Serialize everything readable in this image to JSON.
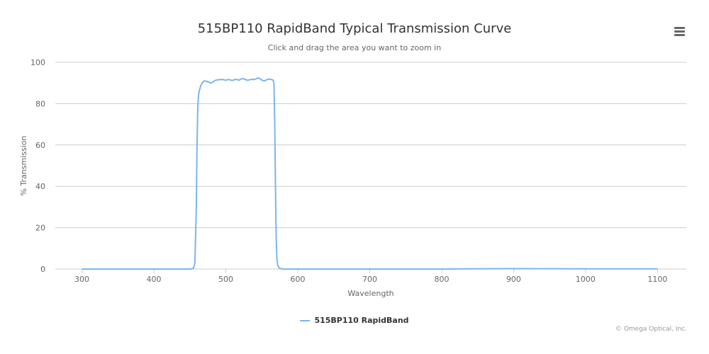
{
  "colors": {
    "series": "#7cb5ec",
    "grid": "#cccccc",
    "axis_text": "#666666",
    "title": "#333333"
  },
  "menu": {
    "icon": "hamburger-menu-icon"
  },
  "chart_data": {
    "type": "line",
    "title": "515BP110 RapidBand Typical Transmission Curve",
    "subtitle": "Click and drag the area you want to zoom in",
    "xlabel": "Wavelength",
    "ylabel": "% Transmission",
    "xlim": [
      263,
      1140
    ],
    "ylim": [
      0,
      100
    ],
    "x_ticks": [
      300,
      400,
      500,
      600,
      700,
      800,
      900,
      1000,
      1100
    ],
    "y_ticks": [
      0,
      20,
      40,
      60,
      80,
      100
    ],
    "grid": true,
    "legend_position": "bottom-center",
    "series": [
      {
        "name": "515BP110 RapidBand",
        "color": "#7cb5ec",
        "x": [
          300,
          400,
          450,
          455,
          457,
          459,
          460,
          461,
          462,
          463,
          465,
          467,
          470,
          473,
          476,
          479,
          482,
          485,
          488,
          491,
          494,
          497,
          500,
          503,
          506,
          509,
          512,
          515,
          518,
          521,
          524,
          527,
          530,
          533,
          536,
          539,
          542,
          545,
          548,
          551,
          554,
          557,
          560,
          563,
          566,
          567,
          568,
          569,
          570,
          571,
          572,
          574,
          576,
          580,
          600,
          700,
          800,
          900,
          1000,
          1100
        ],
        "y": [
          0,
          0,
          0,
          0.3,
          3,
          30,
          60,
          78,
          84,
          86,
          88.5,
          90,
          91,
          90.8,
          90.5,
          90,
          90.4,
          91.2,
          91.5,
          91.6,
          91.7,
          91.6,
          91.3,
          91.7,
          91.5,
          91.2,
          91.6,
          91.8,
          91.3,
          91.9,
          92.1,
          91.7,
          91.3,
          91.5,
          91.8,
          91.6,
          92.0,
          92.4,
          92.0,
          91.2,
          91.0,
          91.6,
          91.9,
          91.7,
          91.3,
          89,
          70,
          40,
          15,
          5,
          2,
          0.6,
          0.2,
          0,
          0,
          0,
          0,
          0.2,
          0.1,
          0.1
        ]
      }
    ]
  },
  "legend": {
    "label": "515BP110 RapidBand"
  },
  "credits": "© Omega Optical, Inc."
}
